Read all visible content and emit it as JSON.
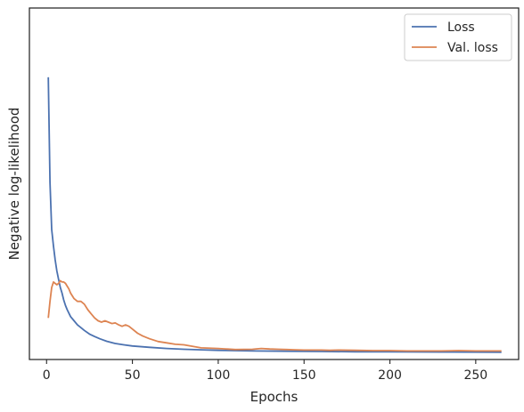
{
  "chart_data": {
    "type": "line",
    "title": "",
    "xlabel": "Epochs",
    "ylabel": "Negative log-likelihood",
    "xlim": [
      -10,
      275
    ],
    "ylim": [
      -0.02,
      1.25
    ],
    "xticks": [
      0,
      50,
      100,
      150,
      200,
      250
    ],
    "yticks_shown": false,
    "grid": false,
    "legend_position": "top-right",
    "series": [
      {
        "name": "Loss",
        "color": "#4c72b0",
        "x": [
          1,
          2,
          3,
          4,
          5,
          6,
          7,
          8,
          9,
          10,
          11,
          12,
          14,
          16,
          18,
          20,
          22,
          25,
          28,
          31,
          35,
          40,
          45,
          50,
          60,
          70,
          80,
          90,
          100,
          120,
          140,
          160,
          180,
          200,
          230,
          265
        ],
        "y": [
          1.0,
          0.62,
          0.45,
          0.39,
          0.34,
          0.3,
          0.27,
          0.24,
          0.22,
          0.195,
          0.175,
          0.16,
          0.135,
          0.12,
          0.105,
          0.095,
          0.085,
          0.072,
          0.063,
          0.055,
          0.046,
          0.038,
          0.033,
          0.029,
          0.024,
          0.02,
          0.017,
          0.015,
          0.013,
          0.011,
          0.01,
          0.009,
          0.008,
          0.0075,
          0.007,
          0.0065
        ]
      },
      {
        "name": "Val. loss",
        "color": "#dd8452",
        "x": [
          1,
          2,
          3,
          4,
          5,
          6,
          7,
          8,
          9,
          10,
          11,
          12,
          13,
          14,
          16,
          18,
          20,
          22,
          24,
          26,
          28,
          30,
          32,
          34,
          36,
          38,
          40,
          42,
          44,
          46,
          48,
          50,
          53,
          56,
          60,
          65,
          70,
          75,
          80,
          90,
          100,
          110,
          120,
          125,
          130,
          135,
          140,
          145,
          150,
          160,
          165,
          170,
          180,
          190,
          200,
          210,
          220,
          230,
          240,
          250,
          265
        ],
        "y": [
          0.13,
          0.19,
          0.24,
          0.26,
          0.255,
          0.25,
          0.255,
          0.265,
          0.26,
          0.26,
          0.255,
          0.245,
          0.235,
          0.22,
          0.2,
          0.19,
          0.19,
          0.18,
          0.16,
          0.145,
          0.13,
          0.12,
          0.115,
          0.12,
          0.115,
          0.11,
          0.112,
          0.105,
          0.1,
          0.105,
          0.1,
          0.09,
          0.075,
          0.065,
          0.055,
          0.045,
          0.04,
          0.035,
          0.033,
          0.022,
          0.02,
          0.016,
          0.017,
          0.02,
          0.018,
          0.017,
          0.016,
          0.015,
          0.014,
          0.014,
          0.013,
          0.014,
          0.013,
          0.012,
          0.012,
          0.011,
          0.011,
          0.011,
          0.012,
          0.011,
          0.011
        ]
      }
    ]
  }
}
